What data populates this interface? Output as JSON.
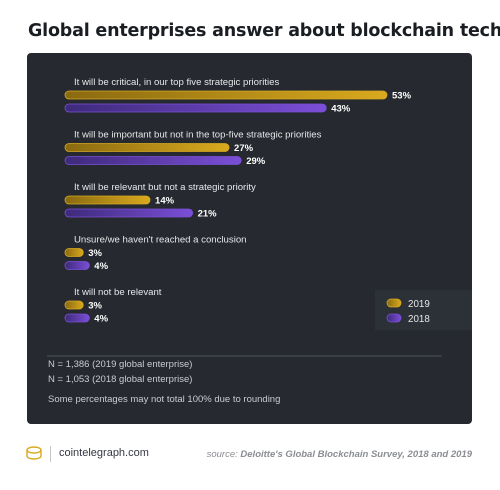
{
  "title": "Global enterprises answer about blockchain tech",
  "colors": {
    "card_bg": "#262a30",
    "series_2019": "#d9a91e",
    "series_2018": "#7b4fd8",
    "text_light": "#e6e7ea",
    "note_text": "#c9cbcf"
  },
  "chart_data": {
    "type": "bar",
    "orientation": "horizontal",
    "categories": [
      "It will be critical, in our top five strategic priorities",
      "It will be important but not in the top-five strategic priorities",
      "It will be relevant but not a strategic priority",
      "Unsure/we haven't reached a conclusion",
      "It will not be relevant"
    ],
    "series": [
      {
        "name": "2019",
        "values": [
          53,
          27,
          14,
          3,
          3
        ],
        "labels": [
          "53%",
          "27%",
          "14%",
          "3%",
          "3%"
        ]
      },
      {
        "name": "2018",
        "values": [
          43,
          29,
          21,
          4,
          4
        ],
        "labels": [
          "43%",
          "29%",
          "21%",
          "4%",
          "4%"
        ]
      }
    ],
    "xlim": [
      0,
      53
    ],
    "legend_position": "bottom-right",
    "grid": false
  },
  "notes": [
    "N = 1,386 (2019 global enterprise)",
    "N = 1,053 (2018 global enterprise)",
    "Some percentages may not total 100% due to rounding"
  ],
  "footer": {
    "site": "cointelegraph.com",
    "source_prefix": "source:",
    "source_text": "Deloitte's Global Blockchain Survey, 2018 and 2019"
  }
}
